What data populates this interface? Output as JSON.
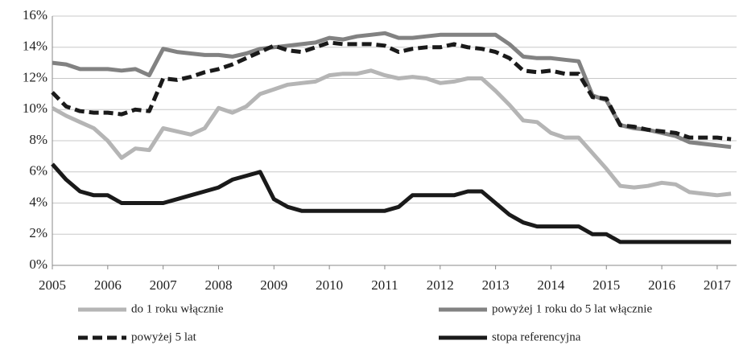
{
  "chart_data": {
    "type": "line",
    "x": [
      2005,
      2005.25,
      2005.5,
      2005.75,
      2006,
      2006.25,
      2006.5,
      2006.75,
      2007,
      2007.25,
      2007.5,
      2007.75,
      2008,
      2008.25,
      2008.5,
      2008.75,
      2009,
      2009.25,
      2009.5,
      2009.75,
      2010,
      2010.25,
      2010.5,
      2010.75,
      2011,
      2011.25,
      2011.5,
      2011.75,
      2012,
      2012.25,
      2012.5,
      2012.75,
      2013,
      2013.25,
      2013.5,
      2013.75,
      2014,
      2014.25,
      2014.5,
      2014.75,
      2015,
      2015.25,
      2015.5,
      2015.75,
      2016,
      2016.25,
      2016.5,
      2016.75,
      2017,
      2017.25
    ],
    "series": [
      {
        "name": "do 1 roku włącznie",
        "color": "#b5b5b5",
        "style": "solid",
        "values": [
          10.1,
          9.6,
          9.2,
          8.8,
          8.0,
          6.9,
          7.5,
          7.4,
          8.8,
          8.6,
          8.4,
          8.8,
          10.1,
          9.8,
          10.2,
          11.0,
          11.3,
          11.6,
          11.7,
          11.8,
          12.2,
          12.3,
          12.3,
          12.5,
          12.2,
          12.0,
          12.1,
          12.0,
          11.7,
          11.8,
          12.0,
          12.0,
          11.2,
          10.3,
          9.3,
          9.2,
          8.5,
          8.2,
          8.2,
          7.2,
          6.2,
          5.1,
          5.0,
          5.1,
          5.3,
          5.2,
          4.7,
          4.6,
          4.5,
          4.6
        ]
      },
      {
        "name": "powyżej 1 roku do 5 lat włącznie",
        "color": "#828282",
        "style": "solid",
        "values": [
          13.0,
          12.9,
          12.6,
          12.6,
          12.6,
          12.5,
          12.6,
          12.2,
          13.9,
          13.7,
          13.6,
          13.5,
          13.5,
          13.4,
          13.6,
          13.9,
          14.0,
          14.1,
          14.2,
          14.3,
          14.6,
          14.5,
          14.7,
          14.8,
          14.9,
          14.6,
          14.6,
          14.7,
          14.8,
          14.8,
          14.8,
          14.8,
          14.8,
          14.2,
          13.4,
          13.3,
          13.3,
          13.2,
          13.1,
          10.9,
          10.6,
          9.0,
          8.8,
          8.7,
          8.5,
          8.3,
          7.9,
          7.8,
          7.7,
          7.6
        ]
      },
      {
        "name": "powyżej 5 lat",
        "color": "#1a1a1a",
        "style": "dashed",
        "values": [
          11.1,
          10.2,
          9.9,
          9.8,
          9.8,
          9.7,
          10.0,
          9.9,
          12.0,
          11.9,
          12.1,
          12.4,
          12.6,
          12.9,
          13.3,
          13.7,
          14.1,
          13.8,
          13.7,
          14.0,
          14.3,
          14.2,
          14.2,
          14.2,
          14.1,
          13.7,
          13.9,
          14.0,
          14.0,
          14.2,
          14.0,
          13.9,
          13.7,
          13.3,
          12.5,
          12.4,
          12.5,
          12.3,
          12.3,
          10.8,
          10.7,
          9.0,
          8.9,
          8.7,
          8.6,
          8.5,
          8.2,
          8.2,
          8.2,
          8.1
        ]
      },
      {
        "name": "stopa referencyjna",
        "color": "#1a1a1a",
        "style": "solid",
        "values": [
          6.5,
          5.5,
          4.75,
          4.5,
          4.5,
          4.0,
          4.0,
          4.0,
          4.0,
          4.25,
          4.5,
          4.75,
          5.0,
          5.5,
          5.75,
          6.0,
          4.25,
          3.75,
          3.5,
          3.5,
          3.5,
          3.5,
          3.5,
          3.5,
          3.5,
          3.75,
          4.5,
          4.5,
          4.5,
          4.5,
          4.75,
          4.75,
          4.0,
          3.25,
          2.75,
          2.5,
          2.5,
          2.5,
          2.5,
          2.0,
          2.0,
          1.5,
          1.5,
          1.5,
          1.5,
          1.5,
          1.5,
          1.5,
          1.5,
          1.5
        ]
      }
    ],
    "xlim": [
      2005,
      2017.35
    ],
    "xticks": [
      2005,
      2006,
      2007,
      2008,
      2009,
      2010,
      2011,
      2012,
      2013,
      2014,
      2015,
      2016,
      2017
    ],
    "ylim": [
      0,
      16
    ],
    "yticks": [
      {
        "value": 0,
        "label": "0%"
      },
      {
        "value": 2,
        "label": "2%"
      },
      {
        "value": 4,
        "label": "4%"
      },
      {
        "value": 6,
        "label": "6%"
      },
      {
        "value": 8,
        "label": "8%"
      },
      {
        "value": 10,
        "label": "10%"
      },
      {
        "value": 12,
        "label": "12%"
      },
      {
        "value": 14,
        "label": "14%"
      },
      {
        "value": 16,
        "label": "16%"
      }
    ],
    "grid": true
  }
}
